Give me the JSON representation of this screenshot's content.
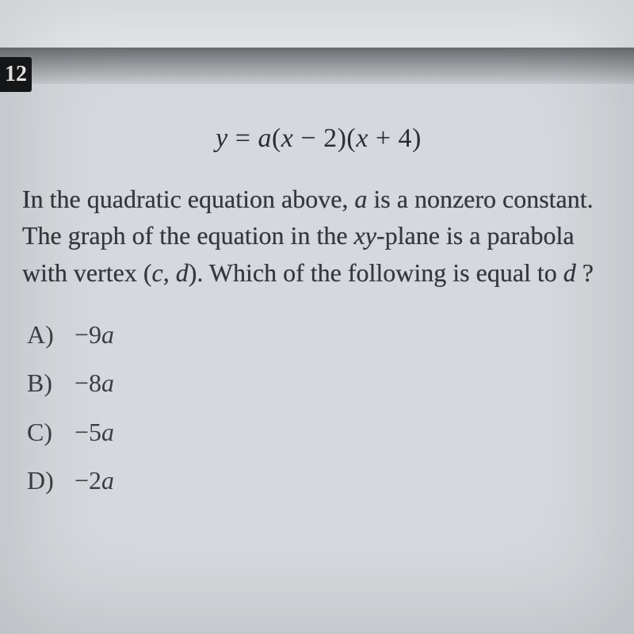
{
  "question_number": "12",
  "equation": {
    "lhs": "y",
    "eq": "=",
    "rhs_a": "a",
    "rhs_open1": "(",
    "rhs_x1": "x",
    "rhs_minus": " − ",
    "rhs_two": "2",
    "rhs_close1": ")",
    "rhs_open2": "(",
    "rhs_x2": "x",
    "rhs_plus": " + ",
    "rhs_four": "4",
    "rhs_close2": ")"
  },
  "stem": {
    "p1": "In the quadratic equation above, ",
    "a": "a",
    "p2": " is a nonzero constant. The graph of the equation in the ",
    "xy": "xy",
    "p3": "-plane is a parabola with vertex ",
    "cd_open": "(",
    "c": "c",
    "comma": ", ",
    "d": "d",
    "cd_close": ").",
    "p4": " Which of the following is equal to ",
    "d2": "d",
    "qm": " ?"
  },
  "choices": [
    {
      "label": "A)",
      "coef": "−9",
      "var": "a"
    },
    {
      "label": "B)",
      "coef": "−8",
      "var": "a"
    },
    {
      "label": "C)",
      "coef": "−5",
      "var": "a"
    },
    {
      "label": "D)",
      "coef": "−2",
      "var": "a"
    }
  ],
  "colors": {
    "page_bg": "#d5d9dd",
    "badge_bg": "#17181a",
    "badge_fg": "#f2f2f2",
    "text": "#2f3438"
  },
  "fonts": {
    "body_family": "Georgia, 'Times New Roman', serif",
    "equation_size_pt": 26,
    "stem_size_pt": 24,
    "choice_size_pt": 24
  }
}
